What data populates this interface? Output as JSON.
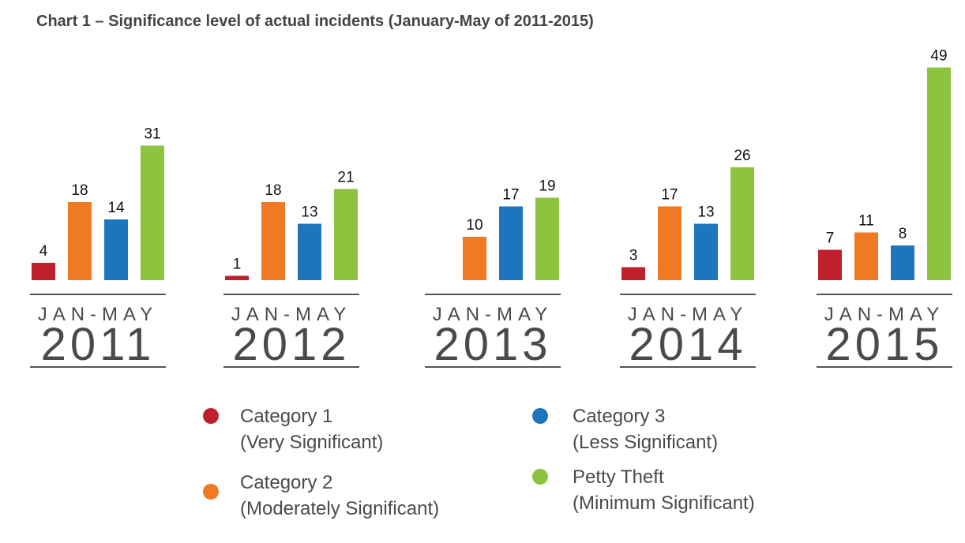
{
  "chart_data": {
    "type": "bar",
    "title": "Chart 1 – Significance level of actual incidents (January-May of 2011-2015)",
    "xlabel": "",
    "ylabel": "",
    "ylim": [
      0,
      49
    ],
    "grid": false,
    "legend_position": "bottom",
    "categories": [
      {
        "period": "JAN-MAY",
        "year": "2011"
      },
      {
        "period": "JAN-MAY",
        "year": "2012"
      },
      {
        "period": "JAN-MAY",
        "year": "2013"
      },
      {
        "period": "JAN-MAY",
        "year": "2014"
      },
      {
        "period": "JAN-MAY",
        "year": "2015"
      }
    ],
    "series": [
      {
        "name": "Category 1",
        "description": "(Very Significant)",
        "color": "#c0202e",
        "values": [
          4,
          1,
          null,
          3,
          7
        ]
      },
      {
        "name": "Category 2",
        "description": "(Moderately Significant)",
        "color": "#f07a24",
        "values": [
          18,
          18,
          10,
          17,
          11
        ]
      },
      {
        "name": "Category 3",
        "description": "(Less Significant)",
        "color": "#1d75bd",
        "values": [
          14,
          13,
          17,
          13,
          8
        ]
      },
      {
        "name": "Petty Theft",
        "description": "(Minimum Significant)",
        "color": "#8cc43f",
        "values": [
          31,
          21,
          19,
          26,
          49
        ]
      }
    ]
  }
}
